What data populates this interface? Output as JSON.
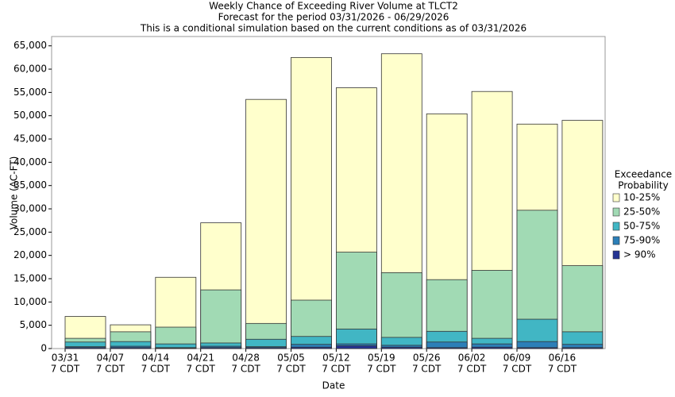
{
  "chart_data": {
    "type": "bar",
    "title": "Weekly Chance of Exceeding River Volume at TLCT2",
    "subtitle": "Forecast for the period 03/31/2026 - 06/29/2026",
    "subtitle2": "This is a conditional simulation based on the current conditions as of 03/31/2026",
    "x_label": "Date",
    "y_label": "Volume (AC-FT)",
    "legend_title": [
      "Exceedance",
      "Probability"
    ],
    "legend_position": "right",
    "grid": false,
    "categories": [
      [
        "03/31",
        "7 CDT"
      ],
      [
        "04/07",
        "7 CDT"
      ],
      [
        "04/14",
        "7 CDT"
      ],
      [
        "04/21",
        "7 CDT"
      ],
      [
        "04/28",
        "7 CDT"
      ],
      [
        "05/05",
        "7 CDT"
      ],
      [
        "05/12",
        "7 CDT"
      ],
      [
        "05/19",
        "7 CDT"
      ],
      [
        "05/26",
        "7 CDT"
      ],
      [
        "06/02",
        "7 CDT"
      ],
      [
        "06/09",
        "7 CDT"
      ],
      [
        "06/16",
        "7 CDT"
      ]
    ],
    "series": [
      {
        "name": "10-25%",
        "color": "#ffffcc",
        "values": [
          6900,
          5100,
          15300,
          27000,
          53500,
          62500,
          56000,
          63300,
          50400,
          55200,
          48200,
          49000
        ]
      },
      {
        "name": "25-50%",
        "color": "#a1dab4",
        "values": [
          2200,
          3600,
          4600,
          12600,
          5400,
          10400,
          20700,
          16300,
          14800,
          16800,
          29700,
          17800
        ]
      },
      {
        "name": "50-75%",
        "color": "#41b6c4",
        "values": [
          1400,
          1500,
          1000,
          1200,
          2000,
          2600,
          4200,
          2400,
          3700,
          2200,
          6300,
          3600
        ]
      },
      {
        "name": "75-90%",
        "color": "#2c7fb8",
        "values": [
          400,
          500,
          200,
          500,
          400,
          900,
          1000,
          700,
          1400,
          1000,
          1500,
          900
        ]
      },
      {
        "name": "> 90%",
        "color": "#253494",
        "values": [
          200,
          200,
          100,
          200,
          200,
          300,
          600,
          300,
          200,
          300,
          200,
          200
        ]
      }
    ],
    "ylim": [
      0,
      67000
    ],
    "yticks": [
      0,
      {
        "value": 5000,
        "label": "5,000"
      },
      {
        "value": 10000,
        "label": "10,000"
      },
      {
        "value": 15000,
        "label": "15,000"
      },
      {
        "value": 20000,
        "label": "20,000"
      },
      {
        "value": 25000,
        "label": "25,000"
      },
      {
        "value": 30000,
        "label": "30,000"
      },
      {
        "value": 35000,
        "label": "35,000"
      },
      {
        "value": 40000,
        "label": "40,000"
      },
      {
        "value": 45000,
        "label": "45,000"
      },
      {
        "value": 50000,
        "label": "50,000"
      },
      {
        "value": 55000,
        "label": "55,000"
      },
      {
        "value": 60000,
        "label": "60,000"
      },
      {
        "value": 65000,
        "label": "65,000"
      }
    ]
  }
}
